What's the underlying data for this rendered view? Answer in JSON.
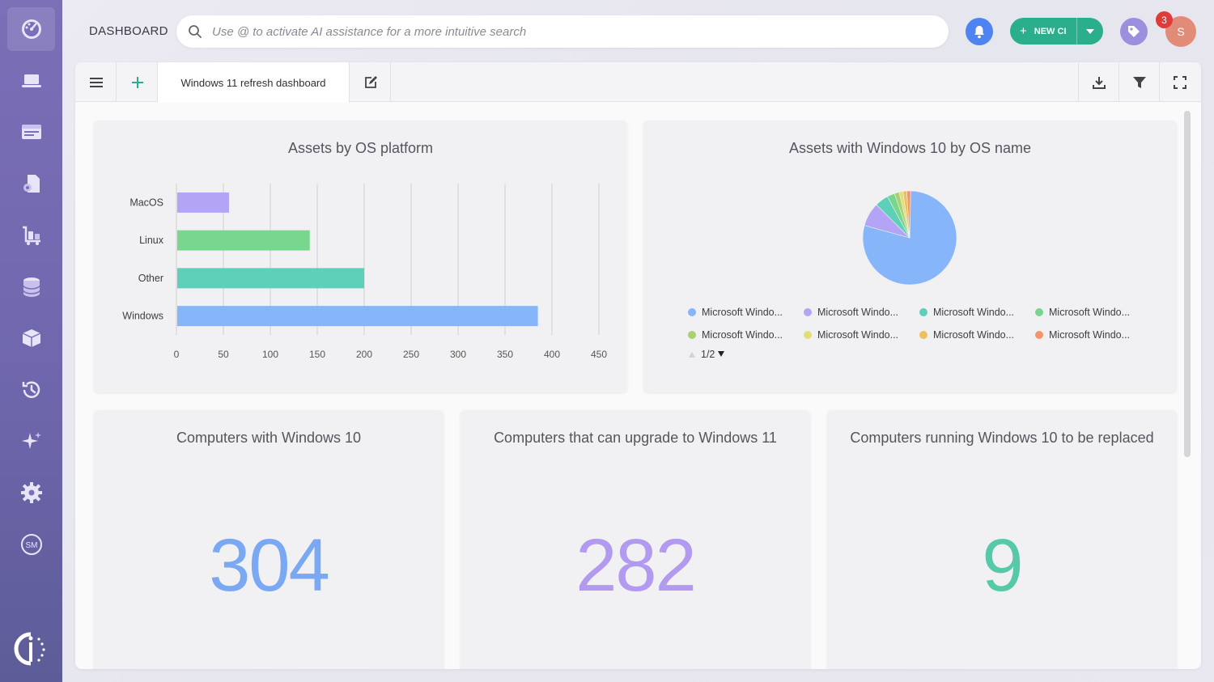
{
  "header": {
    "title": "DASHBOARD",
    "search_placeholder": "Use @ to activate AI assistance for a more intuitive search",
    "new_ci_label": "NEW CI",
    "notification_count": "3",
    "avatar_initial": "S"
  },
  "sidebar": {
    "items": [
      {
        "icon": "dashboard-gauge-icon"
      },
      {
        "icon": "laptop-icon"
      },
      {
        "icon": "browser-window-icon"
      },
      {
        "icon": "software-license-icon"
      },
      {
        "icon": "asset-cart-icon"
      },
      {
        "icon": "database-icon"
      },
      {
        "icon": "package-icon"
      },
      {
        "icon": "history-icon"
      },
      {
        "icon": "sparkle-ai-icon"
      },
      {
        "icon": "settings-gear-icon"
      },
      {
        "icon": "sm-icon",
        "label": "SM"
      }
    ]
  },
  "toolbar": {
    "tab_label": "Windows 11 refresh dashboard"
  },
  "widgets": {
    "os_platform": {
      "title": "Assets by OS platform"
    },
    "win10_os_name": {
      "title": "Assets with Windows 10 by OS name",
      "pagination": "1/2"
    },
    "computers_win10": {
      "title": "Computers with Windows 10",
      "value": "304",
      "color": "#7aa8f2"
    },
    "can_upgrade": {
      "title": "Computers that can upgrade to Windows 11",
      "value": "282",
      "color": "#b19af0"
    },
    "to_replace": {
      "title": "Computers running Windows 10 to be replaced",
      "value": "9",
      "color": "#56c9a8"
    }
  },
  "chart_data": [
    {
      "type": "bar",
      "orientation": "horizontal",
      "title": "Assets by OS platform",
      "categories": [
        "MacOS",
        "Linux",
        "Other",
        "Windows"
      ],
      "values": [
        56,
        142,
        200,
        385
      ],
      "colors": [
        "#b3a4f5",
        "#79d68f",
        "#5ecfb8",
        "#86b6f9"
      ],
      "xticks": [
        0,
        50,
        100,
        150,
        200,
        250,
        300,
        350,
        400,
        450
      ],
      "xlim": [
        0,
        450
      ],
      "grid": true
    },
    {
      "type": "pie",
      "title": "Assets with Windows 10 by OS name",
      "legend_position": "bottom",
      "labels": [
        "Microsoft Windo...",
        "Microsoft Windo...",
        "Microsoft Windo...",
        "Microsoft Windo...",
        "Microsoft Windo...",
        "Microsoft Windo...",
        "Microsoft Windo...",
        "Microsoft Windo..."
      ],
      "values": [
        240,
        25,
        14,
        8,
        5,
        4,
        4,
        4
      ],
      "colors": [
        "#86b6f9",
        "#b3a4f5",
        "#5ecfb8",
        "#79d68f",
        "#a8d26a",
        "#dfe07a",
        "#f0c060",
        "#f3946b"
      ]
    }
  ]
}
